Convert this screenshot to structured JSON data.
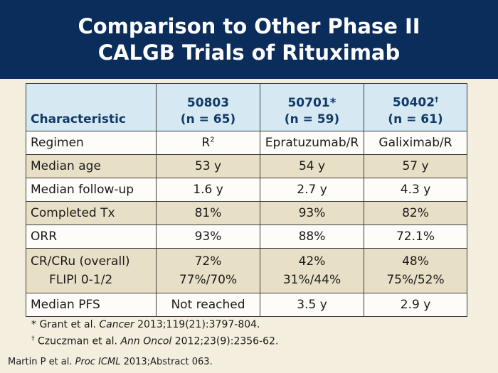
{
  "title": {
    "line1": "Comparison to Other Phase II",
    "line2": "CALGB Trials of Rituximab"
  },
  "table": {
    "header": {
      "characteristic": "Characteristic",
      "columns": [
        {
          "trial": "50803",
          "mark": "",
          "n": "(n = 65)"
        },
        {
          "trial": "50701",
          "mark": "*",
          "n": "(n = 59)"
        },
        {
          "trial": "50402",
          "mark": "†",
          "n": "(n = 61)"
        }
      ]
    },
    "rows": {
      "regimen": {
        "label": "Regimen",
        "c1_base": "R",
        "c1_sup": "2",
        "c2": "Epratuzumab/R",
        "c3": "Galiximab/R"
      },
      "median_age": {
        "label": "Median age",
        "c1": "53 y",
        "c2": "54 y",
        "c3": "57 y"
      },
      "median_followup": {
        "label": "Median follow-up",
        "c1": "1.6 y",
        "c2": "2.7 y",
        "c3": "4.3 y"
      },
      "completed_tx": {
        "label": "Completed Tx",
        "c1": "81%",
        "c2": "93%",
        "c3": "82%"
      },
      "orr": {
        "label": "ORR",
        "c1": "93%",
        "c2": "88%",
        "c3": "72.1%"
      },
      "cr": {
        "label": "CR/CRu (overall)",
        "sublabel": "FLIPI 0-1/2",
        "c1": "72%",
        "c1_sub": "77%/70%",
        "c2": "42%",
        "c2_sub": "31%/44%",
        "c3": "48%",
        "c3_sub": "75%/52%"
      },
      "median_pfs": {
        "label": "Median PFS",
        "c1": "Not reached",
        "c2": "3.5 y",
        "c3": "2.9 y"
      }
    }
  },
  "footnotes": [
    {
      "mark": "*",
      "pre": " Grant et al. ",
      "journal": "Cancer",
      "post": " 2013;119(21):3797-804."
    },
    {
      "mark": "†",
      "pre": " Czuczman et al. ",
      "journal": "Ann Oncol",
      "post": " 2012;23(9):2356-62."
    }
  ],
  "citation": {
    "pre": "Martin P et al. ",
    "journal": "Proc ICML",
    "post": " 2013;Abstract 063."
  },
  "colors": {
    "header_bg": "#0b2d5b",
    "slide_bg": "#f3eedd",
    "table_head_bg": "#d6e9f3",
    "table_head_text": "#123a66",
    "row_even_bg": "#e8e0c6",
    "row_odd_bg": "#fdfcf8"
  }
}
